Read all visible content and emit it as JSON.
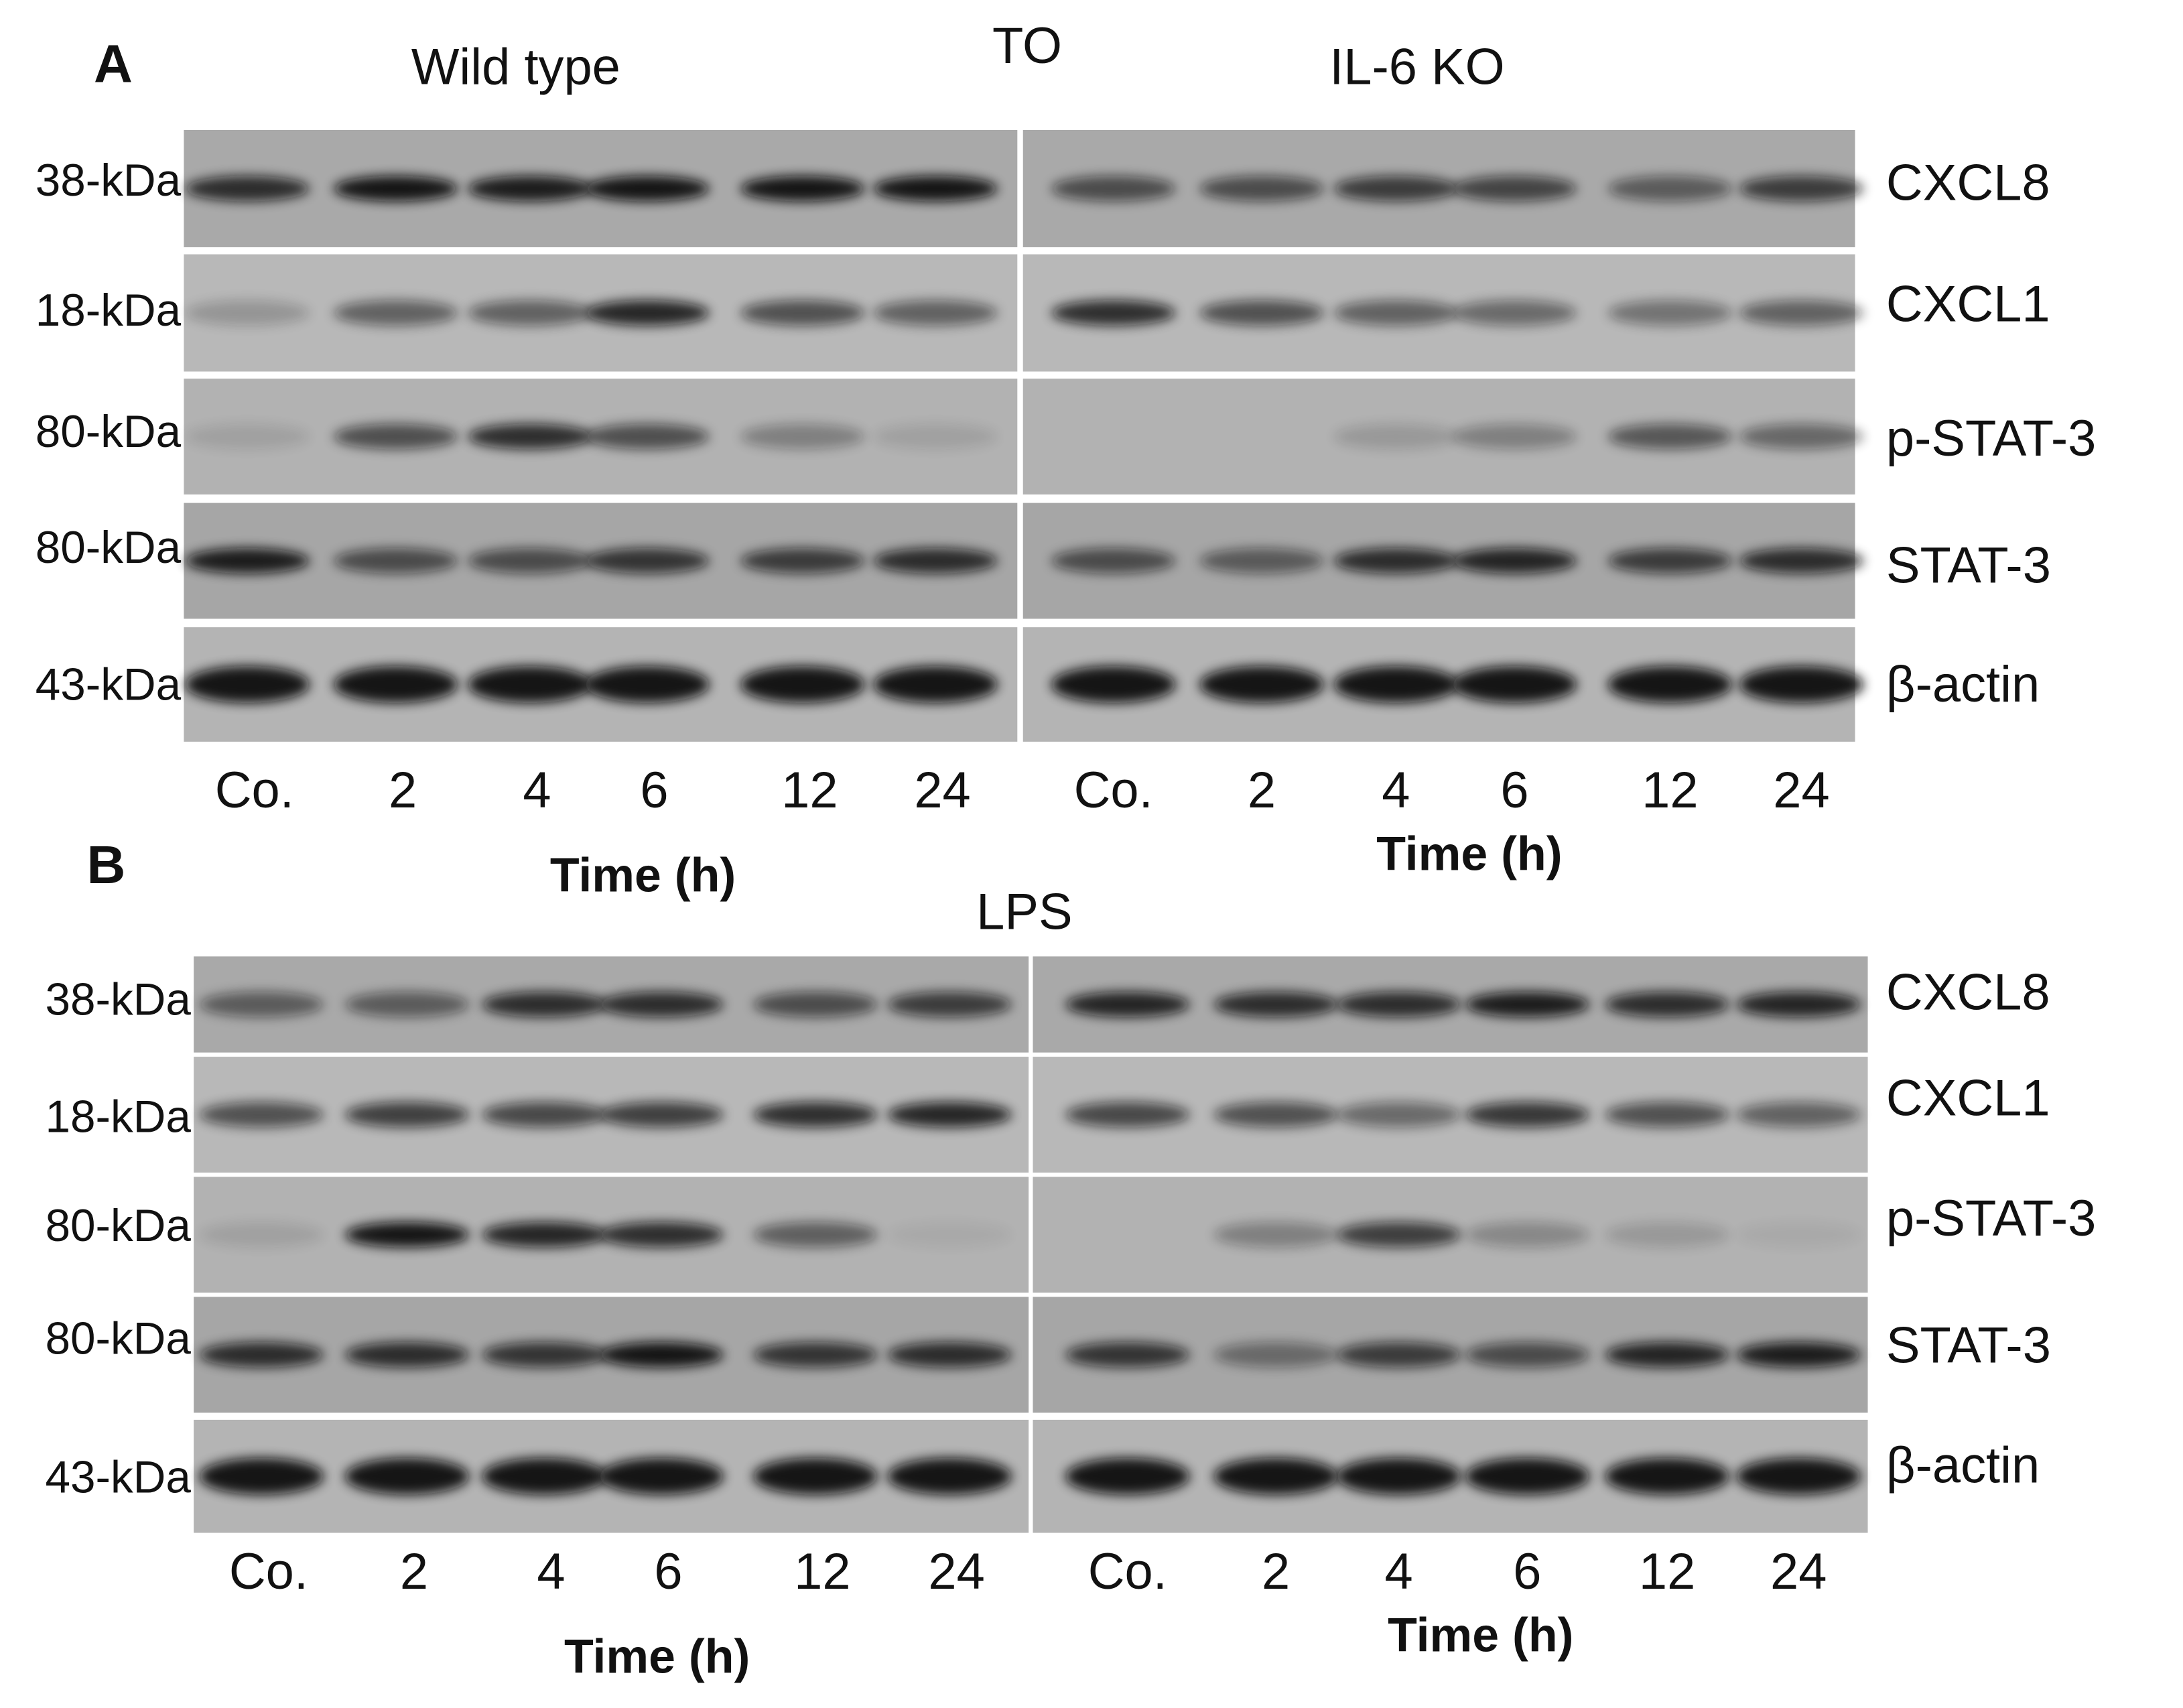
{
  "panels": [
    {
      "label": "A",
      "treatment": "TO",
      "groups": [
        "Wild type",
        "IL-6 KO"
      ],
      "rows": [
        {
          "size": "38-kDa",
          "protein": "CXCL8"
        },
        {
          "size": "18-kDa",
          "protein": "CXCL1"
        },
        {
          "size": "80-kDa",
          "protein": "p-STAT-3"
        },
        {
          "size": "80-kDa",
          "protein": "STAT-3"
        },
        {
          "size": "43-kDa",
          "protein": "β-actin"
        }
      ],
      "lanes": [
        [
          "Co.",
          "2",
          "4",
          "6",
          "12",
          "24"
        ],
        [
          "Co.",
          "2",
          "4",
          "6",
          "12",
          "24"
        ]
      ],
      "time_labels": [
        "Time (h)",
        "Time (h)"
      ]
    },
    {
      "label": "B",
      "treatment": "LPS",
      "rows": [
        {
          "size": "38-kDa",
          "protein": "CXCL8"
        },
        {
          "size": "18-kDa",
          "protein": "CXCL1"
        },
        {
          "size": "80-kDa",
          "protein": "p-STAT-3"
        },
        {
          "size": "80-kDa",
          "protein": "STAT-3"
        },
        {
          "size": "43-kDa",
          "protein": "β-actin"
        }
      ],
      "lanes": [
        [
          "Co.",
          "2",
          "4",
          "6",
          "12",
          "24"
        ],
        [
          "Co.",
          "2",
          "4",
          "6",
          "12",
          "24"
        ]
      ],
      "time_labels": [
        "Time (h)",
        "Time (h)"
      ]
    }
  ]
}
